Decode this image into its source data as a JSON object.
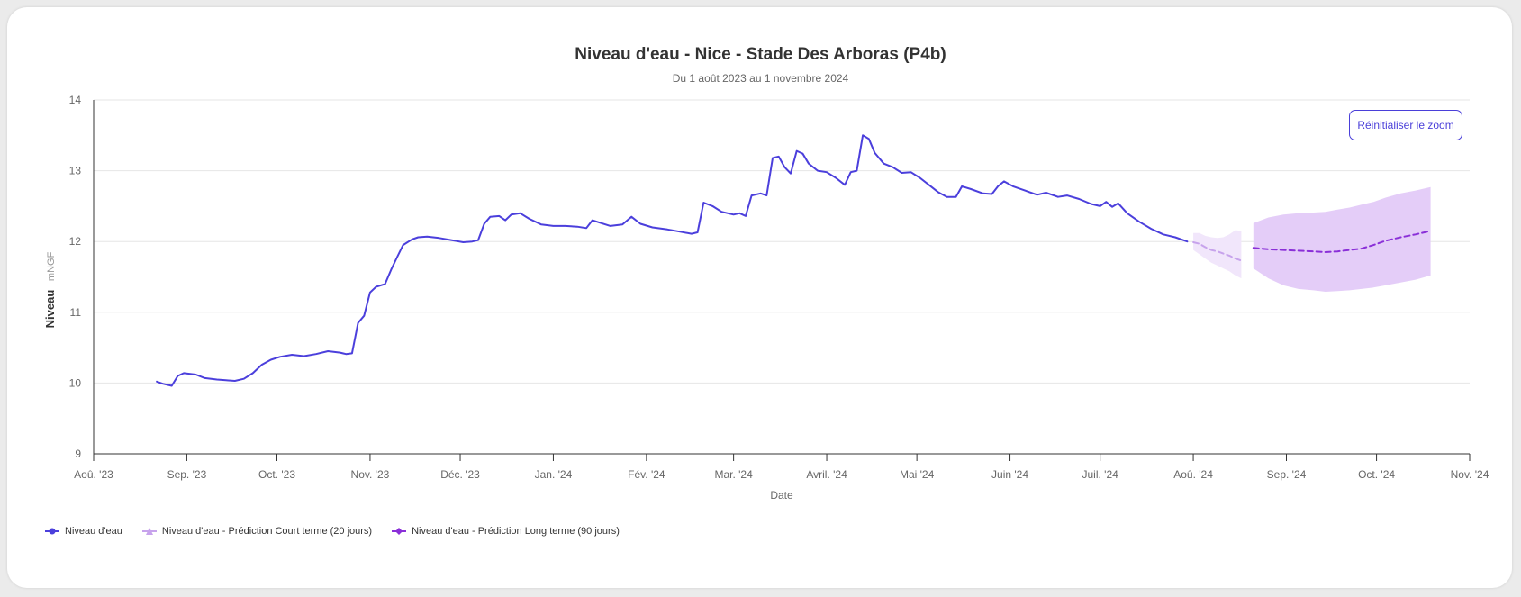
{
  "chart_data": {
    "type": "line",
    "title": "Niveau d'eau - Nice - Stade Des Arboras (P4b)",
    "subtitle": "Du 1 août 2023 au 1 novembre 2024",
    "xlabel": "Date",
    "ylabel": "Niveau",
    "yunit": "mNGF",
    "xlim": [
      "2023-08-01",
      "2024-11-01"
    ],
    "ylim": [
      9,
      14
    ],
    "yticks": [
      9,
      10,
      11,
      12,
      13,
      14
    ],
    "xticks": [
      {
        "date": "2023-08-01",
        "label": "Aoû. '23"
      },
      {
        "date": "2023-09-01",
        "label": "Sep. '23"
      },
      {
        "date": "2023-10-01",
        "label": "Oct. '23"
      },
      {
        "date": "2023-11-01",
        "label": "Nov. '23"
      },
      {
        "date": "2023-12-01",
        "label": "Déc. '23"
      },
      {
        "date": "2024-01-01",
        "label": "Jan. '24"
      },
      {
        "date": "2024-02-01",
        "label": "Fév. '24"
      },
      {
        "date": "2024-03-01",
        "label": "Mar. '24"
      },
      {
        "date": "2024-04-01",
        "label": "Avril. '24"
      },
      {
        "date": "2024-05-01",
        "label": "Mai '24"
      },
      {
        "date": "2024-06-01",
        "label": "Juin '24"
      },
      {
        "date": "2024-07-01",
        "label": "Juil. '24"
      },
      {
        "date": "2024-08-01",
        "label": "Aoû. '24"
      },
      {
        "date": "2024-09-01",
        "label": "Sep. '24"
      },
      {
        "date": "2024-10-01",
        "label": "Oct. '24"
      },
      {
        "date": "2024-11-01",
        "label": "Nov. '24"
      }
    ],
    "grid": true,
    "legend_position": "bottom-left",
    "series": [
      {
        "name": "Niveau d'eau",
        "color": "#4b3fdc",
        "style": "solid",
        "points": [
          [
            "2023-08-22",
            10.02
          ],
          [
            "2023-08-24",
            9.99
          ],
          [
            "2023-08-27",
            9.96
          ],
          [
            "2023-08-29",
            10.1
          ],
          [
            "2023-08-31",
            10.14
          ],
          [
            "2023-09-04",
            10.12
          ],
          [
            "2023-09-07",
            10.07
          ],
          [
            "2023-09-11",
            10.05
          ],
          [
            "2023-09-14",
            10.04
          ],
          [
            "2023-09-17",
            10.03
          ],
          [
            "2023-09-20",
            10.06
          ],
          [
            "2023-09-23",
            10.14
          ],
          [
            "2023-09-26",
            10.26
          ],
          [
            "2023-09-29",
            10.33
          ],
          [
            "2023-10-02",
            10.37
          ],
          [
            "2023-10-06",
            10.4
          ],
          [
            "2023-10-10",
            10.38
          ],
          [
            "2023-10-14",
            10.41
          ],
          [
            "2023-10-18",
            10.45
          ],
          [
            "2023-10-22",
            10.43
          ],
          [
            "2023-10-24",
            10.41
          ],
          [
            "2023-10-26",
            10.42
          ],
          [
            "2023-10-28",
            10.85
          ],
          [
            "2023-10-30",
            10.95
          ],
          [
            "2023-11-01",
            11.28
          ],
          [
            "2023-11-03",
            11.36
          ],
          [
            "2023-11-06",
            11.4
          ],
          [
            "2023-11-08",
            11.6
          ],
          [
            "2023-11-10",
            11.78
          ],
          [
            "2023-11-12",
            11.95
          ],
          [
            "2023-11-15",
            12.03
          ],
          [
            "2023-11-17",
            12.06
          ],
          [
            "2023-11-20",
            12.07
          ],
          [
            "2023-11-24",
            12.05
          ],
          [
            "2023-11-28",
            12.02
          ],
          [
            "2023-12-02",
            11.99
          ],
          [
            "2023-12-05",
            12.0
          ],
          [
            "2023-12-07",
            12.02
          ],
          [
            "2023-12-09",
            12.25
          ],
          [
            "2023-12-11",
            12.35
          ],
          [
            "2023-12-14",
            12.36
          ],
          [
            "2023-12-16",
            12.3
          ],
          [
            "2023-12-18",
            12.38
          ],
          [
            "2023-12-21",
            12.4
          ],
          [
            "2023-12-24",
            12.32
          ],
          [
            "2023-12-28",
            12.24
          ],
          [
            "2024-01-01",
            12.22
          ],
          [
            "2024-01-05",
            12.22
          ],
          [
            "2024-01-09",
            12.21
          ],
          [
            "2024-01-12",
            12.19
          ],
          [
            "2024-01-14",
            12.3
          ],
          [
            "2024-01-17",
            12.26
          ],
          [
            "2024-01-20",
            12.22
          ],
          [
            "2024-01-24",
            12.24
          ],
          [
            "2024-01-27",
            12.35
          ],
          [
            "2024-01-30",
            12.25
          ],
          [
            "2024-02-03",
            12.2
          ],
          [
            "2024-02-08",
            12.17
          ],
          [
            "2024-02-12",
            12.14
          ],
          [
            "2024-02-16",
            12.11
          ],
          [
            "2024-02-18",
            12.13
          ],
          [
            "2024-02-20",
            12.55
          ],
          [
            "2024-02-23",
            12.5
          ],
          [
            "2024-02-26",
            12.42
          ],
          [
            "2024-03-01",
            12.38
          ],
          [
            "2024-03-03",
            12.4
          ],
          [
            "2024-03-05",
            12.36
          ],
          [
            "2024-03-07",
            12.65
          ],
          [
            "2024-03-10",
            12.68
          ],
          [
            "2024-03-12",
            12.65
          ],
          [
            "2024-03-14",
            13.18
          ],
          [
            "2024-03-16",
            13.2
          ],
          [
            "2024-03-18",
            13.05
          ],
          [
            "2024-03-20",
            12.96
          ],
          [
            "2024-03-22",
            13.28
          ],
          [
            "2024-03-24",
            13.24
          ],
          [
            "2024-03-26",
            13.1
          ],
          [
            "2024-03-29",
            13.0
          ],
          [
            "2024-04-01",
            12.98
          ],
          [
            "2024-04-04",
            12.9
          ],
          [
            "2024-04-07",
            12.8
          ],
          [
            "2024-04-09",
            12.98
          ],
          [
            "2024-04-11",
            13.0
          ],
          [
            "2024-04-13",
            13.5
          ],
          [
            "2024-04-15",
            13.45
          ],
          [
            "2024-04-17",
            13.25
          ],
          [
            "2024-04-20",
            13.1
          ],
          [
            "2024-04-23",
            13.05
          ],
          [
            "2024-04-26",
            12.97
          ],
          [
            "2024-04-29",
            12.98
          ],
          [
            "2024-05-02",
            12.9
          ],
          [
            "2024-05-05",
            12.8
          ],
          [
            "2024-05-08",
            12.7
          ],
          [
            "2024-05-11",
            12.63
          ],
          [
            "2024-05-14",
            12.63
          ],
          [
            "2024-05-16",
            12.78
          ],
          [
            "2024-05-19",
            12.74
          ],
          [
            "2024-05-23",
            12.68
          ],
          [
            "2024-05-26",
            12.67
          ],
          [
            "2024-05-28",
            12.78
          ],
          [
            "2024-05-30",
            12.85
          ],
          [
            "2024-06-02",
            12.78
          ],
          [
            "2024-06-06",
            12.72
          ],
          [
            "2024-06-10",
            12.66
          ],
          [
            "2024-06-13",
            12.69
          ],
          [
            "2024-06-17",
            12.63
          ],
          [
            "2024-06-20",
            12.65
          ],
          [
            "2024-06-24",
            12.6
          ],
          [
            "2024-06-28",
            12.53
          ],
          [
            "2024-07-01",
            12.5
          ],
          [
            "2024-07-03",
            12.56
          ],
          [
            "2024-07-05",
            12.49
          ],
          [
            "2024-07-07",
            12.54
          ],
          [
            "2024-07-10",
            12.4
          ],
          [
            "2024-07-14",
            12.28
          ],
          [
            "2024-07-18",
            12.18
          ],
          [
            "2024-07-22",
            12.1
          ],
          [
            "2024-07-26",
            12.06
          ],
          [
            "2024-07-30",
            12.0
          ]
        ]
      },
      {
        "name": "Niveau d'eau - Prédiction Court terme (20 jours)",
        "color": "#c7a3ec",
        "band_color": "#f1e6fb",
        "style": "dashed",
        "points": [
          [
            "2024-08-01",
            11.99
          ],
          [
            "2024-08-03",
            11.97
          ],
          [
            "2024-08-05",
            11.92
          ],
          [
            "2024-08-07",
            11.88
          ],
          [
            "2024-08-09",
            11.86
          ],
          [
            "2024-08-11",
            11.83
          ],
          [
            "2024-08-13",
            11.8
          ],
          [
            "2024-08-15",
            11.76
          ],
          [
            "2024-08-17",
            11.73
          ]
        ],
        "band_upper": [
          12.12,
          12.12,
          12.08,
          12.06,
          12.05,
          12.06,
          12.1,
          12.16,
          12.15
        ],
        "band_lower": [
          11.88,
          11.82,
          11.76,
          11.7,
          11.66,
          11.62,
          11.58,
          11.52,
          11.48
        ]
      },
      {
        "name": "Niveau d'eau - Prédiction Long terme (90 jours)",
        "color": "#8a2fd8",
        "band_color": "#e4cdf8",
        "style": "dashed",
        "points": [
          [
            "2024-08-21",
            11.91
          ],
          [
            "2024-08-26",
            11.89
          ],
          [
            "2024-08-31",
            11.88
          ],
          [
            "2024-09-05",
            11.87
          ],
          [
            "2024-09-10",
            11.86
          ],
          [
            "2024-09-14",
            11.85
          ],
          [
            "2024-09-18",
            11.86
          ],
          [
            "2024-09-22",
            11.88
          ],
          [
            "2024-09-26",
            11.9
          ],
          [
            "2024-09-30",
            11.95
          ],
          [
            "2024-10-04",
            12.01
          ],
          [
            "2024-10-09",
            12.06
          ],
          [
            "2024-10-14",
            12.1
          ],
          [
            "2024-10-19",
            12.15
          ]
        ],
        "band_upper": [
          12.26,
          12.34,
          12.38,
          12.4,
          12.41,
          12.42,
          12.45,
          12.48,
          12.52,
          12.56,
          12.62,
          12.68,
          12.72,
          12.77
        ],
        "band_lower": [
          11.62,
          11.48,
          11.38,
          11.33,
          11.31,
          11.29,
          11.3,
          11.31,
          11.33,
          11.35,
          11.38,
          11.42,
          11.46,
          11.52
        ]
      }
    ]
  },
  "zoom_button": {
    "label": "Réinitialiser le zoom"
  }
}
